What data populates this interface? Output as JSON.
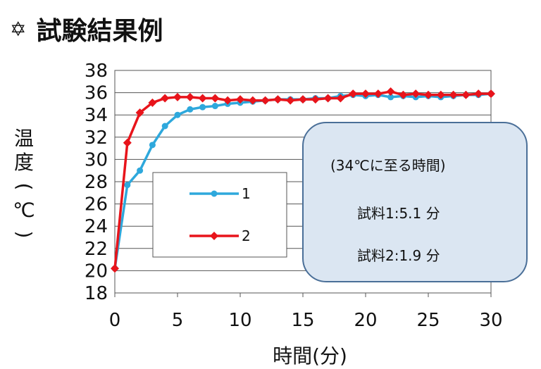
{
  "heading": {
    "icon": "six-point-star-icon",
    "text": "試験結果例"
  },
  "chart_data": {
    "type": "line",
    "title": "",
    "xlabel": "時間(分)",
    "ylabel": "温度(℃)",
    "xlim": [
      0,
      30
    ],
    "ylim": [
      18,
      38
    ],
    "xticks": [
      0,
      5,
      10,
      15,
      20,
      25,
      30
    ],
    "yticks": [
      18,
      20,
      22,
      24,
      26,
      28,
      30,
      32,
      34,
      36,
      38
    ],
    "grid": "horizontal",
    "legend_position": "inside-left",
    "series": [
      {
        "name": "1",
        "color": "#2ea8dc",
        "marker": "circle",
        "x": [
          0,
          1,
          2,
          3,
          4,
          5,
          6,
          7,
          8,
          9,
          10,
          11,
          12,
          13,
          14,
          15,
          16,
          17,
          18,
          19,
          20,
          21,
          22,
          23,
          24,
          25,
          26,
          27,
          28,
          29,
          30
        ],
        "y": [
          20.2,
          27.7,
          29.0,
          31.3,
          33.0,
          34.0,
          34.5,
          34.7,
          34.8,
          35.0,
          35.1,
          35.2,
          35.3,
          35.4,
          35.4,
          35.4,
          35.5,
          35.5,
          35.7,
          35.8,
          35.7,
          35.8,
          35.6,
          35.7,
          35.6,
          35.7,
          35.6,
          35.7,
          35.8,
          35.8,
          35.9
        ]
      },
      {
        "name": "2",
        "color": "#e8141b",
        "marker": "diamond",
        "x": [
          0,
          1,
          2,
          3,
          4,
          5,
          6,
          7,
          8,
          9,
          10,
          11,
          12,
          13,
          14,
          15,
          16,
          17,
          18,
          19,
          20,
          21,
          22,
          23,
          24,
          25,
          26,
          27,
          28,
          29,
          30
        ],
        "y": [
          20.2,
          31.5,
          34.2,
          35.1,
          35.5,
          35.6,
          35.6,
          35.5,
          35.5,
          35.3,
          35.4,
          35.3,
          35.3,
          35.4,
          35.3,
          35.4,
          35.4,
          35.5,
          35.5,
          35.9,
          35.9,
          35.9,
          36.1,
          35.8,
          35.9,
          35.8,
          35.8,
          35.8,
          35.8,
          35.9,
          35.9
        ]
      }
    ]
  },
  "note": {
    "title": "(34℃に至る時間)",
    "sample1": "試料1:5.1 分",
    "sample2": "試料2:1.9 分"
  }
}
